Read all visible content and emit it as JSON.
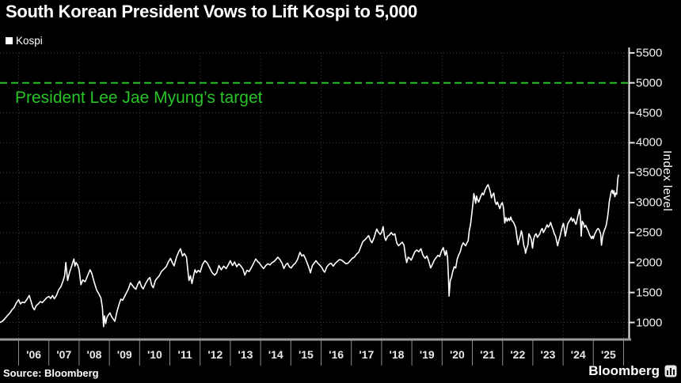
{
  "header": {
    "title": "South Korean President Vows to Lift Kospi to 5,000",
    "legend_label": "Kospi"
  },
  "footer": {
    "source": "Source: Bloomberg",
    "brand": "Bloomberg"
  },
  "colors": {
    "background": "#000000",
    "line": "#ffffff",
    "grid": "#3f3f3f",
    "axis": "#e8e8e8",
    "accent_green": "#28c328"
  },
  "chart_data": {
    "type": "line",
    "title": "South Korean President Vows to Lift Kospi to 5,000",
    "series_name": "Kospi",
    "ylabel": "Index level",
    "ylim": [
      700,
      5650
    ],
    "grid": true,
    "legend_position": "top-left",
    "y_ticks": [
      1000,
      1500,
      2000,
      2500,
      3000,
      3500,
      4000,
      4500,
      5000,
      5500
    ],
    "x_labels": [
      "'06",
      "'07",
      "'08",
      "'09",
      "'10",
      "'11",
      "'12",
      "'13",
      "'14",
      "'15",
      "'16",
      "'17",
      "'18",
      "'19",
      "'20",
      "'21",
      "'22",
      "'23",
      "'24",
      "'25"
    ],
    "x_gridline_years": [
      2006,
      2008,
      2010,
      2012,
      2014,
      2016,
      2018,
      2020,
      2022,
      2024,
      2026
    ],
    "target_line": {
      "value": 5000,
      "label": "President Lee Jae Myung’s target",
      "color": "#28c328",
      "style": "dashed"
    },
    "points": [
      [
        2005.38,
        1000
      ],
      [
        2005.46,
        1020
      ],
      [
        2005.54,
        1060
      ],
      [
        2005.62,
        1110
      ],
      [
        2005.7,
        1150
      ],
      [
        2005.78,
        1210
      ],
      [
        2005.85,
        1250
      ],
      [
        2005.92,
        1320
      ],
      [
        2006.0,
        1380
      ],
      [
        2006.06,
        1310
      ],
      [
        2006.12,
        1340
      ],
      [
        2006.2,
        1330
      ],
      [
        2006.28,
        1390
      ],
      [
        2006.35,
        1450
      ],
      [
        2006.42,
        1340
      ],
      [
        2006.47,
        1250
      ],
      [
        2006.52,
        1210
      ],
      [
        2006.58,
        1280
      ],
      [
        2006.65,
        1310
      ],
      [
        2006.72,
        1350
      ],
      [
        2006.78,
        1330
      ],
      [
        2006.85,
        1370
      ],
      [
        2006.92,
        1410
      ],
      [
        2007.0,
        1435
      ],
      [
        2007.06,
        1400
      ],
      [
        2007.12,
        1450
      ],
      [
        2007.18,
        1395
      ],
      [
        2007.25,
        1450
      ],
      [
        2007.32,
        1540
      ],
      [
        2007.4,
        1600
      ],
      [
        2007.46,
        1680
      ],
      [
        2007.52,
        1780
      ],
      [
        2007.56,
        2000
      ],
      [
        2007.62,
        1700
      ],
      [
        2007.68,
        1830
      ],
      [
        2007.74,
        1920
      ],
      [
        2007.8,
        2020
      ],
      [
        2007.83,
        2060
      ],
      [
        2007.86,
        1940
      ],
      [
        2007.9,
        2000
      ],
      [
        2007.95,
        1960
      ],
      [
        2008.0,
        1880
      ],
      [
        2008.06,
        1630
      ],
      [
        2008.12,
        1710
      ],
      [
        2008.2,
        1680
      ],
      [
        2008.28,
        1780
      ],
      [
        2008.36,
        1880
      ],
      [
        2008.42,
        1820
      ],
      [
        2008.5,
        1670
      ],
      [
        2008.58,
        1540
      ],
      [
        2008.66,
        1470
      ],
      [
        2008.72,
        1410
      ],
      [
        2008.77,
        1250
      ],
      [
        2008.81,
        930
      ],
      [
        2008.84,
        1110
      ],
      [
        2008.88,
        980
      ],
      [
        2008.92,
        1080
      ],
      [
        2008.96,
        1120
      ],
      [
        2009.02,
        1160
      ],
      [
        2009.08,
        1090
      ],
      [
        2009.14,
        1050
      ],
      [
        2009.18,
        1020
      ],
      [
        2009.25,
        1180
      ],
      [
        2009.32,
        1300
      ],
      [
        2009.38,
        1390
      ],
      [
        2009.44,
        1370
      ],
      [
        2009.5,
        1430
      ],
      [
        2009.56,
        1490
      ],
      [
        2009.63,
        1560
      ],
      [
        2009.7,
        1660
      ],
      [
        2009.76,
        1620
      ],
      [
        2009.82,
        1580
      ],
      [
        2009.88,
        1555
      ],
      [
        2009.94,
        1640
      ],
      [
        2010.0,
        1690
      ],
      [
        2010.06,
        1600
      ],
      [
        2010.12,
        1560
      ],
      [
        2010.2,
        1650
      ],
      [
        2010.28,
        1720
      ],
      [
        2010.34,
        1750
      ],
      [
        2010.4,
        1620
      ],
      [
        2010.45,
        1580
      ],
      [
        2010.52,
        1700
      ],
      [
        2010.58,
        1740
      ],
      [
        2010.65,
        1780
      ],
      [
        2010.72,
        1850
      ],
      [
        2010.8,
        1890
      ],
      [
        2010.88,
        1930
      ],
      [
        2010.95,
        2010
      ],
      [
        2011.02,
        2070
      ],
      [
        2011.08,
        2000
      ],
      [
        2011.14,
        1945
      ],
      [
        2011.22,
        2090
      ],
      [
        2011.3,
        2190
      ],
      [
        2011.35,
        2230
      ],
      [
        2011.42,
        2110
      ],
      [
        2011.48,
        2150
      ],
      [
        2011.55,
        2090
      ],
      [
        2011.6,
        1850
      ],
      [
        2011.63,
        1700
      ],
      [
        2011.68,
        1780
      ],
      [
        2011.73,
        1650
      ],
      [
        2011.78,
        1770
      ],
      [
        2011.83,
        1880
      ],
      [
        2011.88,
        1830
      ],
      [
        2011.94,
        1870
      ],
      [
        2012.0,
        1840
      ],
      [
        2012.08,
        1970
      ],
      [
        2012.16,
        2030
      ],
      [
        2012.24,
        1990
      ],
      [
        2012.32,
        1910
      ],
      [
        2012.4,
        1830
      ],
      [
        2012.48,
        1790
      ],
      [
        2012.55,
        1830
      ],
      [
        2012.62,
        1950
      ],
      [
        2012.7,
        1880
      ],
      [
        2012.78,
        1940
      ],
      [
        2012.86,
        1900
      ],
      [
        2012.94,
        1970
      ],
      [
        2013.0,
        2030
      ],
      [
        2013.07,
        1950
      ],
      [
        2013.14,
        2010
      ],
      [
        2013.21,
        1930
      ],
      [
        2013.28,
        1980
      ],
      [
        2013.35,
        1940
      ],
      [
        2013.42,
        1890
      ],
      [
        2013.48,
        1790
      ],
      [
        2013.55,
        1870
      ],
      [
        2013.62,
        1850
      ],
      [
        2013.7,
        1920
      ],
      [
        2013.78,
        2000
      ],
      [
        2013.84,
        2060
      ],
      [
        2013.9,
        2020
      ],
      [
        2013.96,
        1990
      ],
      [
        2014.03,
        1940
      ],
      [
        2014.1,
        1900
      ],
      [
        2014.17,
        1950
      ],
      [
        2014.24,
        1980
      ],
      [
        2014.31,
        1960
      ],
      [
        2014.38,
        2000
      ],
      [
        2014.45,
        2020
      ],
      [
        2014.52,
        2060
      ],
      [
        2014.57,
        2090
      ],
      [
        2014.64,
        2050
      ],
      [
        2014.71,
        1990
      ],
      [
        2014.77,
        1900
      ],
      [
        2014.83,
        1960
      ],
      [
        2014.89,
        1990
      ],
      [
        2014.95,
        1930
      ],
      [
        2015.01,
        1910
      ],
      [
        2015.08,
        1960
      ],
      [
        2015.15,
        1990
      ],
      [
        2015.22,
        2050
      ],
      [
        2015.3,
        2170
      ],
      [
        2015.36,
        2110
      ],
      [
        2015.42,
        2130
      ],
      [
        2015.48,
        2070
      ],
      [
        2015.55,
        1980
      ],
      [
        2015.6,
        1910
      ],
      [
        2015.65,
        1830
      ],
      [
        2015.71,
        1950
      ],
      [
        2015.77,
        1990
      ],
      [
        2015.83,
        2030
      ],
      [
        2015.89,
        1990
      ],
      [
        2015.95,
        1960
      ],
      [
        2016.02,
        1920
      ],
      [
        2016.08,
        1860
      ],
      [
        2016.12,
        1840
      ],
      [
        2016.19,
        1930
      ],
      [
        2016.26,
        1970
      ],
      [
        2016.33,
        1990
      ],
      [
        2016.4,
        1940
      ],
      [
        2016.47,
        1990
      ],
      [
        2016.54,
        2020
      ],
      [
        2016.61,
        2050
      ],
      [
        2016.68,
        2040
      ],
      [
        2016.75,
        2010
      ],
      [
        2016.82,
        1980
      ],
      [
        2016.89,
        1990
      ],
      [
        2016.96,
        2030
      ],
      [
        2017.03,
        2070
      ],
      [
        2017.1,
        2090
      ],
      [
        2017.17,
        2140
      ],
      [
        2017.24,
        2170
      ],
      [
        2017.31,
        2260
      ],
      [
        2017.38,
        2350
      ],
      [
        2017.45,
        2380
      ],
      [
        2017.52,
        2420
      ],
      [
        2017.57,
        2450
      ],
      [
        2017.63,
        2370
      ],
      [
        2017.68,
        2330
      ],
      [
        2017.74,
        2400
      ],
      [
        2017.8,
        2500
      ],
      [
        2017.84,
        2560
      ],
      [
        2017.89,
        2510
      ],
      [
        2017.95,
        2470
      ],
      [
        2018.0,
        2500
      ],
      [
        2018.05,
        2600
      ],
      [
        2018.1,
        2420
      ],
      [
        2018.14,
        2370
      ],
      [
        2018.2,
        2440
      ],
      [
        2018.26,
        2460
      ],
      [
        2018.32,
        2500
      ],
      [
        2018.38,
        2460
      ],
      [
        2018.44,
        2480
      ],
      [
        2018.5,
        2330
      ],
      [
        2018.56,
        2280
      ],
      [
        2018.62,
        2310
      ],
      [
        2018.68,
        2340
      ],
      [
        2018.74,
        2290
      ],
      [
        2018.79,
        2100
      ],
      [
        2018.83,
        2000
      ],
      [
        2018.88,
        2090
      ],
      [
        2018.93,
        2070
      ],
      [
        2018.98,
        2040
      ],
      [
        2019.04,
        2110
      ],
      [
        2019.1,
        2180
      ],
      [
        2019.16,
        2210
      ],
      [
        2019.23,
        2180
      ],
      [
        2019.3,
        2230
      ],
      [
        2019.37,
        2120
      ],
      [
        2019.44,
        2070
      ],
      [
        2019.5,
        2110
      ],
      [
        2019.56,
        2020
      ],
      [
        2019.6,
        1950
      ],
      [
        2019.62,
        1910
      ],
      [
        2019.68,
        1970
      ],
      [
        2019.74,
        2040
      ],
      [
        2019.8,
        2080
      ],
      [
        2019.86,
        2120
      ],
      [
        2019.92,
        2100
      ],
      [
        2019.98,
        2190
      ],
      [
        2020.04,
        2250
      ],
      [
        2020.1,
        2120
      ],
      [
        2020.14,
        2200
      ],
      [
        2020.18,
        2080
      ],
      [
        2020.21,
        1770
      ],
      [
        2020.23,
        1440
      ],
      [
        2020.27,
        1700
      ],
      [
        2020.31,
        1750
      ],
      [
        2020.35,
        1850
      ],
      [
        2020.4,
        1930
      ],
      [
        2020.45,
        1910
      ],
      [
        2020.5,
        2060
      ],
      [
        2020.55,
        2130
      ],
      [
        2020.6,
        2180
      ],
      [
        2020.65,
        2280
      ],
      [
        2020.7,
        2330
      ],
      [
        2020.74,
        2300
      ],
      [
        2020.78,
        2280
      ],
      [
        2020.82,
        2330
      ],
      [
        2020.86,
        2360
      ],
      [
        2020.9,
        2540
      ],
      [
        2020.94,
        2630
      ],
      [
        2020.98,
        2800
      ],
      [
        2021.02,
        2990
      ],
      [
        2021.05,
        3150
      ],
      [
        2021.08,
        3080
      ],
      [
        2021.11,
        2990
      ],
      [
        2021.14,
        3110
      ],
      [
        2021.17,
        3050
      ],
      [
        2021.21,
        3010
      ],
      [
        2021.25,
        3070
      ],
      [
        2021.29,
        3120
      ],
      [
        2021.33,
        3160
      ],
      [
        2021.37,
        3130
      ],
      [
        2021.41,
        3200
      ],
      [
        2021.45,
        3240
      ],
      [
        2021.49,
        3280
      ],
      [
        2021.52,
        3300
      ],
      [
        2021.56,
        3240
      ],
      [
        2021.6,
        3170
      ],
      [
        2021.63,
        3080
      ],
      [
        2021.67,
        3130
      ],
      [
        2021.71,
        3160
      ],
      [
        2021.75,
        3020
      ],
      [
        2021.79,
        2970
      ],
      [
        2021.83,
        3010
      ],
      [
        2021.87,
        2950
      ],
      [
        2021.91,
        2900
      ],
      [
        2021.95,
        2970
      ],
      [
        2021.99,
        3000
      ],
      [
        2022.03,
        2920
      ],
      [
        2022.07,
        2660
      ],
      [
        2022.11,
        2750
      ],
      [
        2022.15,
        2690
      ],
      [
        2022.19,
        2740
      ],
      [
        2022.23,
        2700
      ],
      [
        2022.27,
        2760
      ],
      [
        2022.31,
        2700
      ],
      [
        2022.35,
        2680
      ],
      [
        2022.39,
        2640
      ],
      [
        2022.43,
        2590
      ],
      [
        2022.47,
        2440
      ],
      [
        2022.51,
        2300
      ],
      [
        2022.55,
        2380
      ],
      [
        2022.59,
        2450
      ],
      [
        2022.62,
        2530
      ],
      [
        2022.66,
        2440
      ],
      [
        2022.7,
        2290
      ],
      [
        2022.74,
        2220
      ],
      [
        2022.76,
        2155
      ],
      [
        2022.8,
        2240
      ],
      [
        2022.84,
        2300
      ],
      [
        2022.87,
        2480
      ],
      [
        2022.91,
        2440
      ],
      [
        2022.95,
        2380
      ],
      [
        2022.99,
        2240
      ],
      [
        2023.03,
        2400
      ],
      [
        2023.07,
        2460
      ],
      [
        2023.11,
        2480
      ],
      [
        2023.15,
        2420
      ],
      [
        2023.19,
        2450
      ],
      [
        2023.23,
        2480
      ],
      [
        2023.27,
        2540
      ],
      [
        2023.31,
        2570
      ],
      [
        2023.35,
        2500
      ],
      [
        2023.39,
        2540
      ],
      [
        2023.43,
        2580
      ],
      [
        2023.47,
        2630
      ],
      [
        2023.51,
        2590
      ],
      [
        2023.55,
        2620
      ],
      [
        2023.59,
        2670
      ],
      [
        2023.63,
        2600
      ],
      [
        2023.67,
        2550
      ],
      [
        2023.71,
        2480
      ],
      [
        2023.75,
        2440
      ],
      [
        2023.79,
        2350
      ],
      [
        2023.82,
        2280
      ],
      [
        2023.86,
        2370
      ],
      [
        2023.9,
        2440
      ],
      [
        2023.94,
        2530
      ],
      [
        2023.98,
        2610
      ],
      [
        2024.01,
        2655
      ],
      [
        2024.04,
        2580
      ],
      [
        2024.07,
        2440
      ],
      [
        2024.11,
        2530
      ],
      [
        2024.15,
        2640
      ],
      [
        2024.19,
        2680
      ],
      [
        2024.23,
        2710
      ],
      [
        2024.27,
        2750
      ],
      [
        2024.31,
        2690
      ],
      [
        2024.35,
        2730
      ],
      [
        2024.39,
        2670
      ],
      [
        2024.43,
        2640
      ],
      [
        2024.47,
        2740
      ],
      [
        2024.51,
        2820
      ],
      [
        2024.54,
        2890
      ],
      [
        2024.57,
        2770
      ],
      [
        2024.6,
        2440
      ],
      [
        2024.63,
        2690
      ],
      [
        2024.67,
        2660
      ],
      [
        2024.71,
        2590
      ],
      [
        2024.75,
        2620
      ],
      [
        2024.79,
        2570
      ],
      [
        2024.83,
        2530
      ],
      [
        2024.87,
        2470
      ],
      [
        2024.91,
        2430
      ],
      [
        2024.94,
        2400
      ],
      [
        2024.97,
        2440
      ],
      [
        2025.0,
        2400
      ],
      [
        2025.04,
        2470
      ],
      [
        2025.08,
        2510
      ],
      [
        2025.12,
        2550
      ],
      [
        2025.16,
        2570
      ],
      [
        2025.2,
        2540
      ],
      [
        2025.24,
        2480
      ],
      [
        2025.27,
        2290
      ],
      [
        2025.31,
        2440
      ],
      [
        2025.35,
        2520
      ],
      [
        2025.39,
        2570
      ],
      [
        2025.43,
        2630
      ],
      [
        2025.47,
        2760
      ],
      [
        2025.5,
        2880
      ],
      [
        2025.53,
        3020
      ],
      [
        2025.56,
        3100
      ],
      [
        2025.59,
        3180
      ],
      [
        2025.62,
        3210
      ],
      [
        2025.65,
        3150
      ],
      [
        2025.68,
        3200
      ],
      [
        2025.71,
        3100
      ],
      [
        2025.74,
        3160
      ],
      [
        2025.77,
        3140
      ],
      [
        2025.79,
        3270
      ],
      [
        2025.81,
        3400
      ],
      [
        2025.83,
        3460
      ]
    ]
  }
}
